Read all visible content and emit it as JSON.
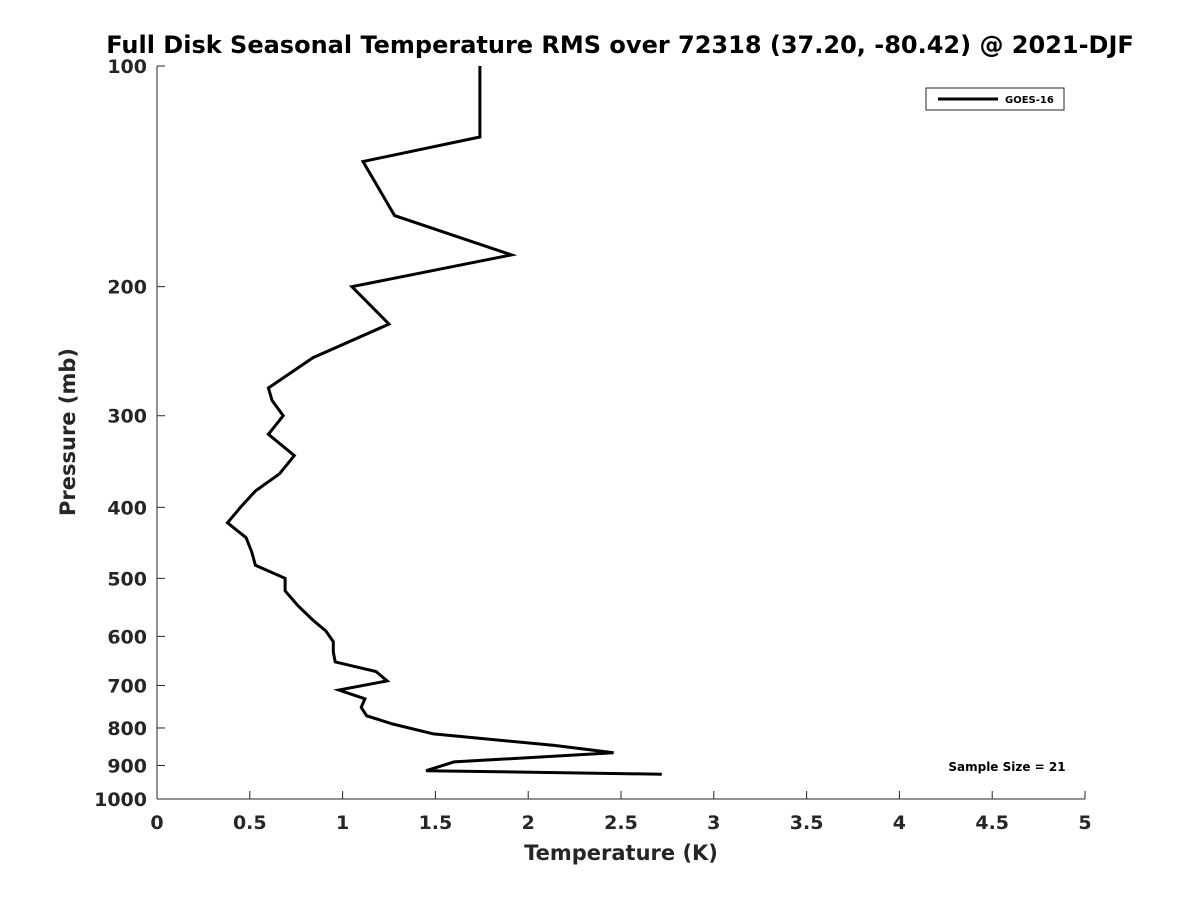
{
  "chart_data": {
    "type": "line",
    "title": "Full Disk Seasonal Temperature RMS over 72318 (37.20, -80.42) @ 2021-DJF",
    "xlabel": "Temperature (K)",
    "ylabel": "Pressure (mb)",
    "xlim": [
      0,
      5
    ],
    "ylim": [
      100,
      1000
    ],
    "y_scale": "log",
    "y_reversed": true,
    "grid": false,
    "legend_position": "top-right",
    "xticks": [
      "0",
      "0.5",
      "1",
      "1.5",
      "2",
      "2.5",
      "3",
      "3.5",
      "4",
      "4.5",
      "5"
    ],
    "yticks": [
      "100",
      "200",
      "300",
      "400",
      "500",
      "600",
      "700",
      "800",
      "900",
      "1000"
    ],
    "annotation": "Sample Size = 21",
    "series": [
      {
        "name": "GOES-16",
        "color": "#000000",
        "x": [
          1.74,
          1.74,
          1.74,
          1.11,
          1.28,
          1.91,
          1.05,
          1.25,
          0.84,
          0.6,
          0.62,
          0.68,
          0.6,
          0.74,
          0.66,
          0.53,
          0.45,
          0.38,
          0.48,
          0.51,
          0.53,
          0.69,
          0.69,
          0.76,
          0.84,
          0.91,
          0.95,
          0.95,
          0.96,
          1.18,
          1.24,
          0.98,
          1.12,
          1.1,
          1.13,
          1.27,
          1.49,
          2.14,
          2.46,
          1.6,
          1.45,
          2.72
        ],
        "y": [
          100,
          112,
          125,
          135,
          160,
          181,
          200,
          225,
          250,
          275,
          286,
          300,
          318,
          340,
          360,
          380,
          400,
          420,
          440,
          460,
          480,
          500,
          520,
          545,
          570,
          590,
          610,
          630,
          650,
          670,
          690,
          710,
          730,
          750,
          770,
          790,
          815,
          845,
          865,
          890,
          915,
          925
        ]
      }
    ]
  }
}
